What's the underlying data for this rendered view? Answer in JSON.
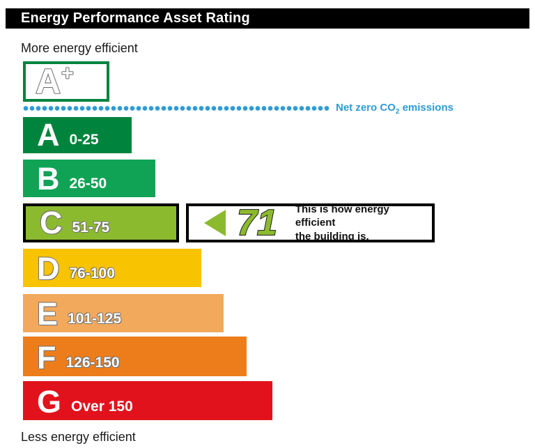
{
  "chart_data": {
    "type": "bar",
    "title": "Energy Performance Asset Rating",
    "more_efficient_label": "More energy efficient",
    "less_efficient_label": "Less energy efficient",
    "top_band": {
      "letter": "A",
      "plus": "+",
      "border_color": "#00843D"
    },
    "net_zero": {
      "prefix": "Net zero CO",
      "subscript": "2",
      "suffix": " emissions",
      "color": "#2D9BD5"
    },
    "bands": [
      {
        "letter": "A",
        "range": "0-25",
        "color": "#00843D"
      },
      {
        "letter": "B",
        "range": "26-50",
        "color": "#10A356"
      },
      {
        "letter": "C",
        "range": "51-75",
        "color": "#8CBA2F"
      },
      {
        "letter": "D",
        "range": "76-100",
        "color": "#F8C300"
      },
      {
        "letter": "E",
        "range": "101-125",
        "color": "#F2A95C"
      },
      {
        "letter": "F",
        "range": "126-150",
        "color": "#ED7D1B"
      },
      {
        "letter": "G",
        "range": "Over 150",
        "color": "#E2121C"
      }
    ],
    "rating": {
      "value": "71",
      "band": "C",
      "color": "#8CBA2F",
      "description_line1": "This is how energy efficient",
      "description_line2": "the building is."
    }
  }
}
